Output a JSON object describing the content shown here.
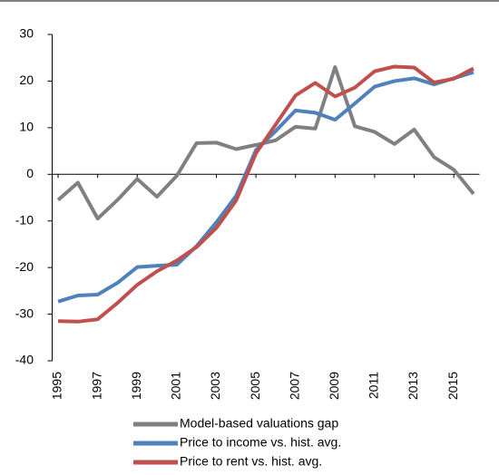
{
  "chart_data": {
    "type": "line",
    "x": [
      1995,
      1996,
      1997,
      1998,
      1999,
      2000,
      2001,
      2002,
      2003,
      2004,
      2005,
      2006,
      2007,
      2008,
      2009,
      2010,
      2011,
      2012,
      2013,
      2014,
      2015,
      2016
    ],
    "xlim": [
      1994.7,
      2016.3
    ],
    "xticks": [
      1995,
      1997,
      1999,
      2001,
      2003,
      2005,
      2007,
      2009,
      2011,
      2013,
      2015
    ],
    "ylim": [
      -40,
      30
    ],
    "yticks": [
      -40,
      -30,
      -20,
      -10,
      0,
      10,
      20,
      30
    ],
    "legend": "bottom",
    "series": [
      {
        "name": "Model-based valuations gap",
        "color": "#808080",
        "values": [
          -5.5,
          -1.8,
          -9.5,
          -5.5,
          -1,
          -4.8,
          -0.3,
          6.7,
          6.8,
          5.4,
          6.3,
          7.3,
          10.2,
          9.8,
          23,
          10.3,
          9.1,
          6.5,
          9.6,
          3.7,
          1,
          -4.2
        ]
      },
      {
        "name": "Price to income vs. hist. avg.",
        "color": "#4f81bd",
        "values": [
          -27.3,
          -26,
          -25.8,
          -23.3,
          -19.9,
          -19.6,
          -19.4,
          -15.4,
          -10.3,
          -4.6,
          5.2,
          9.3,
          13.7,
          13.2,
          11.7,
          15.2,
          18.8,
          20,
          20.6,
          19.3,
          20.6,
          21.9
        ]
      },
      {
        "name": "Price to rent vs. hist. avg.",
        "color": "#c0504d",
        "values": [
          -31.5,
          -31.6,
          -31.1,
          -27.6,
          -23.7,
          -20.8,
          -18.5,
          -15.6,
          -11.5,
          -5.6,
          4.5,
          10.7,
          16.9,
          19.6,
          16.7,
          18.6,
          22.1,
          23.1,
          22.9,
          19.7,
          20.5,
          22.7
        ]
      }
    ]
  }
}
